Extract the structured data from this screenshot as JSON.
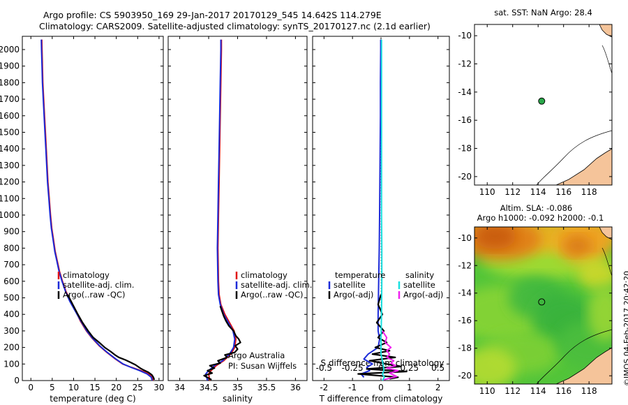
{
  "header": {
    "line1": "Argo profile: CS 5903950_169 29-Jan-2017 20170129_545 14.642S 114.279E",
    "line2": "Climatology: CARS2009. Satellite-adjusted climatology: synTS_20170127.nc (2.1d earlier)"
  },
  "side_label": "©IMOS 04-Feb-2017 20:42:20",
  "colors": {
    "climatology": "#e01010",
    "satellite": "#1c2bd8",
    "argo": "#000000",
    "sal_satellite": "#19e0e0",
    "sal_argo": "#f020f0",
    "land": "#f5c49a",
    "marker_green": "#2aa84a"
  },
  "chart_data": [
    {
      "type": "line",
      "panel": "temperature",
      "xlabel": "temperature (deg C)",
      "xlim": [
        -2,
        31
      ],
      "xticks": [
        0,
        5,
        10,
        15,
        20,
        25,
        30
      ],
      "ylim": [
        2080,
        0
      ],
      "yticks": [
        0,
        100,
        200,
        300,
        400,
        500,
        600,
        700,
        800,
        900,
        1000,
        1100,
        1200,
        1300,
        1400,
        1500,
        1600,
        1700,
        1800,
        1900,
        2000
      ],
      "legend": [
        "climatology",
        "satellite-adj. clim.",
        "Argo(..raw -QC)"
      ],
      "series": [
        {
          "name": "climatology",
          "color": "climatology",
          "points": [
            [
              28.6,
              0
            ],
            [
              28.4,
              20
            ],
            [
              27.6,
              40
            ],
            [
              25.8,
              60
            ],
            [
              23.5,
              80
            ],
            [
              21.5,
              100
            ],
            [
              19.8,
              130
            ],
            [
              17.8,
              170
            ],
            [
              16,
              210
            ],
            [
              14.2,
              260
            ],
            [
              13,
              300
            ],
            [
              11.6,
              360
            ],
            [
              10.5,
              420
            ],
            [
              9.3,
              480
            ],
            [
              8.2,
              540
            ],
            [
              7.4,
              600
            ],
            [
              6.7,
              660
            ],
            [
              6.2,
              720
            ],
            [
              5.7,
              780
            ],
            [
              5.3,
              850
            ],
            [
              4.9,
              920
            ],
            [
              4.6,
              1000
            ],
            [
              4.3,
              1100
            ],
            [
              4,
              1200
            ],
            [
              3.8,
              1300
            ],
            [
              3.6,
              1400
            ],
            [
              3.4,
              1500
            ],
            [
              3.2,
              1600
            ],
            [
              3,
              1700
            ],
            [
              2.8,
              1800
            ],
            [
              2.7,
              1900
            ],
            [
              2.6,
              2000
            ],
            [
              2.55,
              2060
            ]
          ]
        },
        {
          "name": "satellite-adj. clim.",
          "color": "satellite",
          "points": [
            [
              28.4,
              0
            ],
            [
              28.2,
              20
            ],
            [
              27.2,
              40
            ],
            [
              25.5,
              60
            ],
            [
              23.4,
              80
            ],
            [
              21.6,
              100
            ],
            [
              19.9,
              130
            ],
            [
              17.9,
              170
            ],
            [
              16.1,
              210
            ],
            [
              14.3,
              260
            ],
            [
              13.1,
              300
            ],
            [
              11.7,
              360
            ],
            [
              10.4,
              420
            ],
            [
              9.1,
              480
            ],
            [
              8.1,
              540
            ],
            [
              7.3,
              600
            ],
            [
              6.6,
              660
            ],
            [
              6.1,
              720
            ],
            [
              5.6,
              780
            ],
            [
              5.2,
              850
            ],
            [
              4.8,
              920
            ],
            [
              4.5,
              1000
            ],
            [
              4.2,
              1100
            ],
            [
              3.9,
              1200
            ],
            [
              3.7,
              1300
            ],
            [
              3.5,
              1400
            ],
            [
              3.3,
              1500
            ],
            [
              3.1,
              1600
            ],
            [
              2.9,
              1700
            ],
            [
              2.7,
              1800
            ],
            [
              2.6,
              1900
            ],
            [
              2.5,
              2000
            ],
            [
              2.45,
              2060
            ]
          ]
        },
        {
          "name": "Argo(..raw -QC)",
          "color": "argo",
          "points": [
            [
              28.9,
              5
            ],
            [
              28.7,
              20
            ],
            [
              28.3,
              35
            ],
            [
              27.5,
              50
            ],
            [
              26.3,
              65
            ],
            [
              25.6,
              75
            ],
            [
              24.5,
              95
            ],
            [
              23.3,
              110
            ],
            [
              22.1,
              125
            ],
            [
              20.6,
              140
            ],
            [
              19.7,
              155
            ],
            [
              18.7,
              175
            ],
            [
              17.3,
              200
            ],
            [
              16,
              230
            ],
            [
              14.6,
              260
            ],
            [
              13.4,
              300
            ],
            [
              12.1,
              350
            ],
            [
              11,
              400
            ],
            [
              9.8,
              460
            ],
            [
              8.6,
              520
            ]
          ]
        }
      ]
    },
    {
      "type": "line",
      "panel": "salinity",
      "xlabel": "salinity",
      "xlim": [
        33.8,
        36.2
      ],
      "xticks": [
        34,
        34.5,
        35,
        35.5,
        36
      ],
      "ylim": [
        2080,
        0
      ],
      "legend": [
        "climatology",
        "satellite-adj. clim.",
        "Argo(..raw -QC)"
      ],
      "annotation": [
        "Argo Australia",
        "PI: Susan Wijffels"
      ],
      "series": [
        {
          "name": "climatology",
          "color": "climatology",
          "points": [
            [
              34.52,
              0
            ],
            [
              34.5,
              40
            ],
            [
              34.54,
              60
            ],
            [
              34.63,
              90
            ],
            [
              34.76,
              120
            ],
            [
              34.88,
              160
            ],
            [
              34.95,
              200
            ],
            [
              34.97,
              250
            ],
            [
              34.94,
              300
            ],
            [
              34.86,
              350
            ],
            [
              34.78,
              400
            ],
            [
              34.71,
              460
            ],
            [
              34.68,
              520
            ],
            [
              34.67,
              600
            ],
            [
              34.66,
              800
            ],
            [
              34.67,
              1000
            ],
            [
              34.68,
              1200
            ],
            [
              34.69,
              1400
            ],
            [
              34.7,
              1600
            ],
            [
              34.71,
              1800
            ],
            [
              34.72,
              2000
            ],
            [
              34.72,
              2060
            ]
          ]
        },
        {
          "name": "satellite-adj. clim.",
          "color": "satellite",
          "points": [
            [
              34.48,
              0
            ],
            [
              34.45,
              40
            ],
            [
              34.5,
              60
            ],
            [
              34.6,
              90
            ],
            [
              34.74,
              120
            ],
            [
              34.86,
              160
            ],
            [
              34.93,
              200
            ],
            [
              34.95,
              250
            ],
            [
              34.92,
              300
            ],
            [
              34.84,
              350
            ],
            [
              34.76,
              400
            ],
            [
              34.7,
              460
            ],
            [
              34.67,
              520
            ],
            [
              34.66,
              600
            ],
            [
              34.65,
              800
            ],
            [
              34.66,
              1000
            ],
            [
              34.67,
              1200
            ],
            [
              34.68,
              1400
            ],
            [
              34.69,
              1600
            ],
            [
              34.7,
              1800
            ],
            [
              34.71,
              2000
            ],
            [
              34.71,
              2060
            ]
          ]
        },
        {
          "name": "Argo(..raw -QC)",
          "color": "argo",
          "points": [
            [
              34.55,
              5
            ],
            [
              34.42,
              30
            ],
            [
              34.56,
              45
            ],
            [
              34.48,
              60
            ],
            [
              34.6,
              75
            ],
            [
              34.52,
              90
            ],
            [
              34.7,
              105
            ],
            [
              34.66,
              120
            ],
            [
              34.82,
              140
            ],
            [
              34.78,
              155
            ],
            [
              34.95,
              170
            ],
            [
              35.0,
              190
            ],
            [
              34.96,
              210
            ],
            [
              35.05,
              230
            ],
            [
              35.02,
              250
            ],
            [
              34.97,
              270
            ],
            [
              34.93,
              300
            ],
            [
              34.85,
              330
            ],
            [
              34.8,
              360
            ],
            [
              34.76,
              390
            ],
            [
              34.73,
              420
            ],
            [
              34.7,
              450
            ]
          ]
        }
      ]
    },
    {
      "type": "line",
      "panel": "difference",
      "xlabel": "T difference from climatology",
      "xlabel_top": "S difference from climatology",
      "xlim": [
        -2.4,
        2.4
      ],
      "xticks": [
        -2,
        -1,
        0,
        1,
        2
      ],
      "top_ticks": [
        {
          "v": -0.5,
          "label": "-0.5"
        },
        {
          "v": -0.25,
          "label": "-0.25"
        },
        {
          "v": 0,
          "label": "0"
        },
        {
          "v": 0.25,
          "label": "0.25"
        },
        {
          "v": 0.5,
          "label": "0.5"
        }
      ],
      "ylim": [
        2080,
        0
      ],
      "legend_left": [
        "temperature",
        "satellite",
        "Argo(-adj)"
      ],
      "legend_right": [
        "salinity",
        "satellite",
        "Argo(-adj)"
      ],
      "series": [
        {
          "name": "temperature satellite",
          "color": "satellite",
          "points": [
            [
              -0.6,
              20
            ],
            [
              -0.7,
              40
            ],
            [
              -0.4,
              60
            ],
            [
              -0.5,
              80
            ],
            [
              -0.3,
              100
            ],
            [
              -0.6,
              130
            ],
            [
              -0.45,
              160
            ],
            [
              -0.1,
              200
            ],
            [
              -0.05,
              250
            ],
            [
              -0.1,
              300
            ],
            [
              -0.1,
              400
            ],
            [
              -0.08,
              600
            ],
            [
              -0.06,
              800
            ],
            [
              -0.05,
              1000
            ],
            [
              -0.04,
              1200
            ],
            [
              -0.03,
              1400
            ],
            [
              -0.02,
              1600
            ],
            [
              -0.02,
              1800
            ],
            [
              -0.01,
              2000
            ],
            [
              -0.01,
              2060
            ]
          ]
        },
        {
          "name": "temperature Argo(-adj)",
          "color": "argo",
          "points": [
            [
              0.3,
              10
            ],
            [
              0.6,
              20
            ],
            [
              -0.8,
              40
            ],
            [
              0.9,
              55
            ],
            [
              -0.5,
              70
            ],
            [
              0.7,
              85
            ],
            [
              0.2,
              100
            ],
            [
              -0.4,
              120
            ],
            [
              0.5,
              140
            ],
            [
              -0.3,
              160
            ],
            [
              0.3,
              180
            ],
            [
              -0.2,
              200
            ],
            [
              0.2,
              230
            ],
            [
              -0.1,
              260
            ],
            [
              0.1,
              300
            ],
            [
              -0.15,
              350
            ],
            [
              0.05,
              400
            ],
            [
              -0.1,
              460
            ],
            [
              0.0,
              520
            ]
          ]
        },
        {
          "name": "salinity satellite",
          "color": "sal_satellite",
          "points": [
            [
              0.05,
              0
            ],
            [
              0.12,
              20
            ],
            [
              0.05,
              40
            ],
            [
              0.1,
              60
            ],
            [
              0.08,
              90
            ],
            [
              0.05,
              120
            ],
            [
              0.0,
              160
            ],
            [
              0.0,
              250
            ],
            [
              0.02,
              400
            ],
            [
              0.03,
              600
            ],
            [
              0.03,
              800
            ],
            [
              0.02,
              1000
            ],
            [
              0.02,
              1200
            ],
            [
              0.02,
              1400
            ],
            [
              0.02,
              1600
            ],
            [
              0.02,
              1800
            ],
            [
              0.02,
              2000
            ],
            [
              0.02,
              2060
            ]
          ]
        },
        {
          "name": "salinity Argo(-adj)",
          "color": "sal_argo",
          "points": [
            [
              0.1,
              5
            ],
            [
              0.55,
              25
            ],
            [
              0.3,
              45
            ],
            [
              0.6,
              60
            ],
            [
              0.2,
              75
            ],
            [
              0.52,
              90
            ],
            [
              0.35,
              105
            ],
            [
              0.45,
              120
            ],
            [
              0.2,
              140
            ],
            [
              0.3,
              160
            ],
            [
              0.2,
              180
            ],
            [
              0.35,
              200
            ],
            [
              0.15,
              230
            ],
            [
              0.2,
              260
            ],
            [
              0.05,
              300
            ]
          ]
        }
      ]
    },
    {
      "type": "map",
      "panel": "sst",
      "title": "sat. SST: NaN Argo: 28.4",
      "xlim": [
        109,
        119.8
      ],
      "ylim": [
        -20.6,
        -9.2
      ],
      "xticks": [
        110,
        112,
        114,
        116,
        118
      ],
      "yticks": [
        -10,
        -12,
        -14,
        -16,
        -18,
        -20
      ],
      "marker": {
        "lon": 114.279,
        "lat": -14.642
      }
    },
    {
      "type": "heatmap",
      "panel": "sla",
      "title_line1": "Altim. SLA: -0.086",
      "title_line2": "Argo h1000: -0.092 h2000: -0.1",
      "xlim": [
        109,
        119.8
      ],
      "ylim": [
        -20.6,
        -9.2
      ],
      "xticks": [
        110,
        112,
        114,
        116,
        118
      ],
      "yticks": [
        -10,
        -12,
        -14,
        -16,
        -18,
        -20
      ],
      "marker": {
        "lon": 114.279,
        "lat": -14.642
      }
    }
  ]
}
